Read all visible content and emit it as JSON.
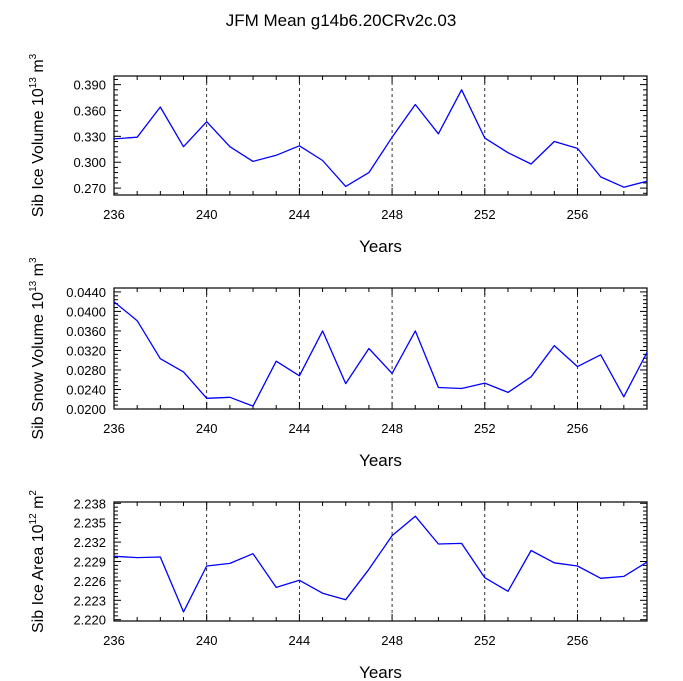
{
  "title": "JFM Mean g14b6.20CRv2c.03",
  "chart_data": [
    {
      "type": "line",
      "ylabel": {
        "prefix": "Sib Ice Volume 10",
        "exp": "13",
        "unit": " m",
        "unit_exp": "3"
      },
      "xlabel": "Years",
      "xlim": [
        236,
        259
      ],
      "ylim": [
        0.262,
        0.4
      ],
      "xticks": [
        236,
        240,
        244,
        248,
        252,
        256
      ],
      "xtick_labels": [
        "236",
        "240",
        "244",
        "248",
        "252",
        "256"
      ],
      "yticks": [
        0.27,
        0.3,
        0.33,
        0.36,
        0.39
      ],
      "ytick_labels": [
        "0.270",
        "0.300",
        "0.330",
        "0.360",
        "0.390"
      ],
      "grid_x": [
        240,
        244,
        248,
        252,
        256
      ],
      "color": "#0000ff",
      "x": [
        236,
        237,
        238,
        239,
        240,
        241,
        242,
        243,
        244,
        245,
        246,
        247,
        248,
        249,
        250,
        251,
        252,
        253,
        254,
        255,
        256,
        257,
        258,
        259
      ],
      "values": [
        0.327,
        0.329,
        0.364,
        0.318,
        0.347,
        0.318,
        0.301,
        0.308,
        0.319,
        0.302,
        0.272,
        0.288,
        0.329,
        0.367,
        0.333,
        0.384,
        0.328,
        0.311,
        0.298,
        0.324,
        0.316,
        0.283,
        0.271,
        0.278
      ]
    },
    {
      "type": "line",
      "ylabel": {
        "prefix": "Sib Snow Volume 10",
        "exp": "13",
        "unit": " m",
        "unit_exp": "3"
      },
      "xlabel": "Years",
      "xlim": [
        236,
        259
      ],
      "ylim": [
        0.02,
        0.0448
      ],
      "xticks": [
        236,
        240,
        244,
        248,
        252,
        256
      ],
      "xtick_labels": [
        "236",
        "240",
        "244",
        "248",
        "252",
        "256"
      ],
      "yticks": [
        0.02,
        0.024,
        0.028,
        0.032,
        0.036,
        0.04,
        0.044
      ],
      "ytick_labels": [
        "0.0200",
        "0.0240",
        "0.0280",
        "0.0320",
        "0.0360",
        "0.0400",
        "0.0440"
      ],
      "grid_x": [
        240,
        244,
        248,
        252,
        256
      ],
      "color": "#0000ff",
      "x": [
        236,
        237,
        238,
        239,
        240,
        241,
        242,
        243,
        244,
        245,
        246,
        247,
        248,
        249,
        250,
        251,
        252,
        253,
        254,
        255,
        256,
        257,
        258,
        259
      ],
      "values": [
        0.042,
        0.0381,
        0.0303,
        0.0276,
        0.0222,
        0.0224,
        0.0206,
        0.0298,
        0.0268,
        0.036,
        0.0252,
        0.0324,
        0.0273,
        0.036,
        0.0244,
        0.0242,
        0.0253,
        0.0234,
        0.0266,
        0.033,
        0.0287,
        0.0311,
        0.0225,
        0.0316
      ]
    },
    {
      "type": "line",
      "ylabel": {
        "prefix": "Sib Ice Area 10",
        "exp": "12",
        "unit": " m",
        "unit_exp": "2"
      },
      "xlabel": "Years",
      "xlim": [
        236,
        259
      ],
      "ylim": [
        2.2198,
        2.2382
      ],
      "xticks": [
        236,
        240,
        244,
        248,
        252,
        256
      ],
      "xtick_labels": [
        "236",
        "240",
        "244",
        "248",
        "252",
        "256"
      ],
      "yticks": [
        2.22,
        2.223,
        2.226,
        2.229,
        2.232,
        2.235,
        2.238
      ],
      "ytick_labels": [
        "2.220",
        "2.223",
        "2.226",
        "2.229",
        "2.232",
        "2.235",
        "2.238"
      ],
      "grid_x": [
        240,
        244,
        248,
        252,
        256
      ],
      "color": "#0000ff",
      "x": [
        236,
        237,
        238,
        239,
        240,
        241,
        242,
        243,
        244,
        245,
        246,
        247,
        248,
        249,
        250,
        251,
        252,
        253,
        254,
        255,
        256,
        257,
        258,
        259
      ],
      "values": [
        2.2298,
        2.2296,
        2.2297,
        2.2212,
        2.2283,
        2.2287,
        2.2302,
        2.225,
        2.2261,
        2.2241,
        2.2231,
        2.2278,
        2.233,
        2.236,
        2.2317,
        2.2318,
        2.2265,
        2.2244,
        2.2307,
        2.2288,
        2.2283,
        2.2264,
        2.2267,
        2.2289
      ]
    }
  ]
}
